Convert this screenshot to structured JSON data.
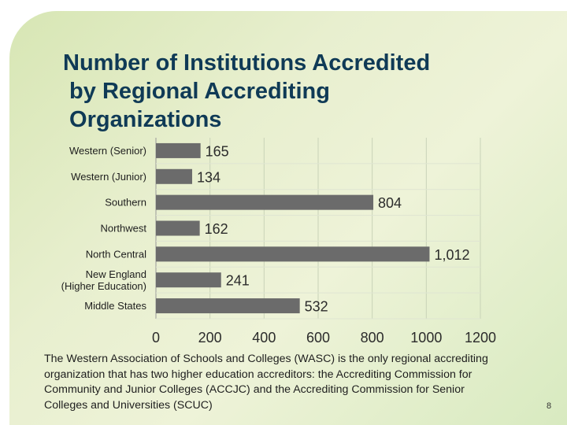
{
  "title_lines": [
    "Number of Institutions Accredited",
    " by Regional Accrediting",
    " Organizations"
  ],
  "chart_data": {
    "type": "bar",
    "orientation": "horizontal",
    "categories": [
      [
        "Western (Senior)"
      ],
      [
        "Western (Junior)"
      ],
      [
        "Southern"
      ],
      [
        "Northwest"
      ],
      [
        "North Central"
      ],
      [
        "New England",
        "(Higher Education)"
      ],
      [
        "Middle States"
      ]
    ],
    "values": [
      165,
      134,
      804,
      162,
      1012,
      241,
      532
    ],
    "value_labels": [
      "165",
      "134",
      "804",
      "162",
      "1,012",
      "241",
      "532"
    ],
    "xlim": [
      0,
      1200
    ],
    "xticks": [
      0,
      200,
      400,
      600,
      800,
      1000,
      1200
    ],
    "bar_color": "#6b6b6b",
    "grid": true,
    "legend": "none"
  },
  "caption": "The Western Association of Schools and Colleges (WASC) is the only regional accrediting organization that has two higher education accreditors: the Accrediting Commission for Community and Junior Colleges (ACCJC) and the Accrediting Commission for Senior Colleges and Universities (SCUC)",
  "page_number": "8"
}
